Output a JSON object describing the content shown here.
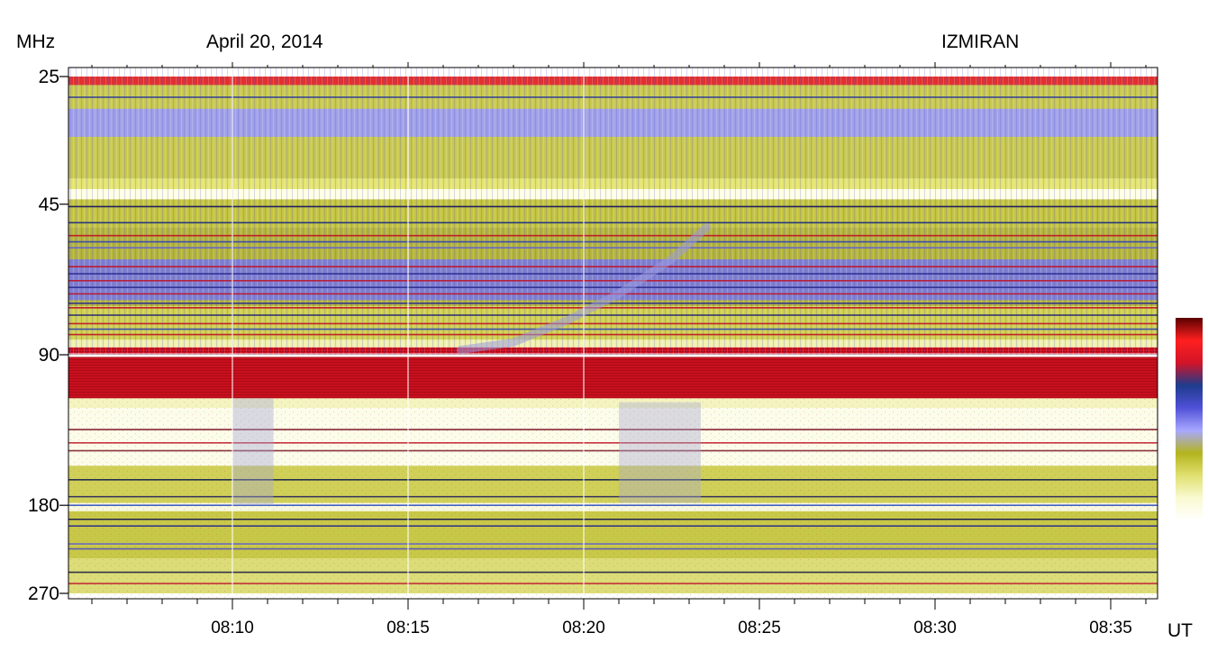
{
  "header": {
    "y_unit": "MHz",
    "date": "April 20, 2014",
    "station": "IZMIRAN",
    "x_unit": "UT"
  },
  "chart_data": {
    "type": "heatmap",
    "title": "",
    "xlabel": "UT",
    "ylabel": "MHz",
    "x_range": [
      "08:05:20",
      "08:36:20"
    ],
    "y_range_mhz": [
      25,
      270
    ],
    "y_scale": "log",
    "y_ticks": [
      {
        "value": 25,
        "label": "25"
      },
      {
        "value": 45,
        "label": "45"
      },
      {
        "value": 90,
        "label": "90"
      },
      {
        "value": 180,
        "label": "180"
      },
      {
        "value": 270,
        "label": "270"
      }
    ],
    "x_ticks": [
      {
        "value": "08:10",
        "label": "08:10"
      },
      {
        "value": "08:15",
        "label": "08:15"
      },
      {
        "value": "08:20",
        "label": "08:20"
      },
      {
        "value": "08:25",
        "label": "08:25"
      },
      {
        "value": "08:30",
        "label": "08:30"
      },
      {
        "value": "08:35",
        "label": "08:35"
      }
    ],
    "x_minor_tick_interval_min": 1,
    "colorbar": {
      "orientation": "vertical",
      "placement": "right",
      "colors_low_to_high": [
        "#ffffff",
        "#fafad2",
        "#e0e070",
        "#b4b41e",
        "#a8a8ff",
        "#5050d8",
        "#1e3c8c",
        "#d21428",
        "#ff2020",
        "#5a0000"
      ]
    },
    "bands": [
      {
        "f_min": 25,
        "f_max": 26,
        "color": "#e03030",
        "note": "interference"
      },
      {
        "f_min": 26,
        "f_max": 40,
        "color": "#c8c850"
      },
      {
        "f_min": 29,
        "f_max": 33,
        "color": "#a0a0e8"
      },
      {
        "f_min": 40,
        "f_max": 42,
        "color": "#e4e470"
      },
      {
        "f_min": 42,
        "f_max": 44,
        "color": "#ffffe6"
      },
      {
        "f_min": 44,
        "f_max": 50,
        "color": "#c4c440"
      },
      {
        "f_min": 50,
        "f_max": 72,
        "color": "#b4b43c"
      },
      {
        "f_min": 58,
        "f_max": 70,
        "color": "#8080d0"
      },
      {
        "f_min": 72,
        "f_max": 84,
        "color": "#d0d050"
      },
      {
        "f_min": 84,
        "f_max": 87,
        "color": "#f0f0b0"
      },
      {
        "f_min": 87,
        "f_max": 89.5,
        "color": "#d00e1e"
      },
      {
        "f_min": 89.5,
        "f_max": 91,
        "color": "#ffffff"
      },
      {
        "f_min": 91,
        "f_max": 110,
        "color": "#c8101e"
      },
      {
        "f_min": 110,
        "f_max": 115,
        "color": "#f4f4c0"
      },
      {
        "f_min": 115,
        "f_max": 150,
        "color": "#fcfcea"
      },
      {
        "f_min": 150,
        "f_max": 178,
        "color": "#d0d058"
      },
      {
        "f_min": 178,
        "f_max": 185,
        "color": "#f8f8e0"
      },
      {
        "f_min": 185,
        "f_max": 230,
        "color": "#c8c848"
      },
      {
        "f_min": 230,
        "f_max": 270,
        "color": "#dcdc78"
      }
    ],
    "lines": [
      {
        "f": 27.5,
        "color": "#2030a0"
      },
      {
        "f": 45.5,
        "color": "#101060"
      },
      {
        "f": 49,
        "color": "#1a2a80"
      },
      {
        "f": 52,
        "color": "#c01020"
      },
      {
        "f": 53.5,
        "color": "#3040b0"
      },
      {
        "f": 55,
        "color": "#6060d0"
      },
      {
        "f": 60,
        "color": "#c01020"
      },
      {
        "f": 62,
        "color": "#2a2a90"
      },
      {
        "f": 64,
        "color": "#c01020"
      },
      {
        "f": 66,
        "color": "#2a2a90"
      },
      {
        "f": 68,
        "color": "#c01020"
      },
      {
        "f": 71,
        "color": "#2a2a90"
      },
      {
        "f": 72.5,
        "color": "#c01020"
      },
      {
        "f": 75,
        "color": "#1a1a70"
      },
      {
        "f": 78,
        "color": "#c01020"
      },
      {
        "f": 80,
        "color": "#3040b0"
      },
      {
        "f": 82,
        "color": "#c01020"
      },
      {
        "f": 127,
        "color": "#7a1020"
      },
      {
        "f": 135,
        "color": "#c02030"
      },
      {
        "f": 140,
        "color": "#802030"
      },
      {
        "f": 160,
        "color": "#102050"
      },
      {
        "f": 173,
        "color": "#202060"
      },
      {
        "f": 180,
        "color": "#3050c0"
      },
      {
        "f": 192,
        "color": "#101050"
      },
      {
        "f": 198,
        "color": "#2a2a90"
      },
      {
        "f": 215,
        "color": "#6060d0"
      },
      {
        "f": 220,
        "color": "#5050c0"
      },
      {
        "f": 245,
        "color": "#202040"
      },
      {
        "f": 258,
        "color": "#c02030"
      }
    ],
    "features": [
      {
        "name": "drifting-burst",
        "points": [
          {
            "t": "08:16:30",
            "f": 88
          },
          {
            "t": "08:18:00",
            "f": 85
          },
          {
            "t": "08:19:30",
            "f": 77
          },
          {
            "t": "08:21:00",
            "f": 68
          },
          {
            "t": "08:22:30",
            "f": 58
          },
          {
            "t": "08:23:30",
            "f": 50
          }
        ],
        "color": "#9a9ae0"
      },
      {
        "name": "broadband-emission-1",
        "t_start": "08:10:00",
        "t_end": "08:11:10",
        "f_min": 110,
        "f_max": 180,
        "color": "#a4a4d8"
      },
      {
        "name": "broadband-emission-2",
        "t_start": "08:21:00",
        "t_end": "08:23:20",
        "f_min": 112,
        "f_max": 178,
        "color": "#a8a8d0"
      },
      {
        "name": "vertical-stripe-1",
        "t": "08:10:00",
        "color": "#ffffff"
      },
      {
        "name": "vertical-stripe-2",
        "t": "08:15:00",
        "color": "#ffffff"
      },
      {
        "name": "vertical-stripe-3",
        "t": "08:20:00",
        "color": "#ffffff"
      }
    ]
  }
}
